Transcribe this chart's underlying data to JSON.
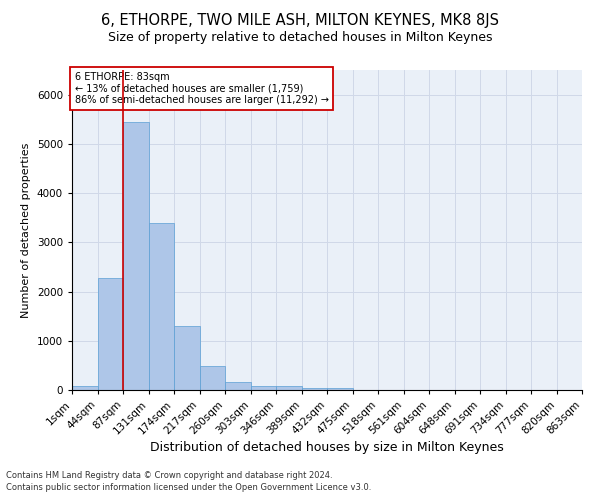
{
  "title": "6, ETHORPE, TWO MILE ASH, MILTON KEYNES, MK8 8JS",
  "subtitle": "Size of property relative to detached houses in Milton Keynes",
  "xlabel": "Distribution of detached houses by size in Milton Keynes",
  "ylabel": "Number of detached properties",
  "footnote1": "Contains HM Land Registry data © Crown copyright and database right 2024.",
  "footnote2": "Contains public sector information licensed under the Open Government Licence v3.0.",
  "annotation_title": "6 ETHORPE: 83sqm",
  "annotation_line2": "← 13% of detached houses are smaller (1,759)",
  "annotation_line3": "86% of semi-detached houses are larger (11,292) →",
  "bar_values": [
    75,
    2270,
    5440,
    3390,
    1290,
    480,
    165,
    85,
    75,
    50,
    45,
    0,
    0,
    0,
    0,
    0,
    0,
    0,
    0,
    0
  ],
  "bar_labels": [
    "1sqm",
    "44sqm",
    "87sqm",
    "131sqm",
    "174sqm",
    "217sqm",
    "260sqm",
    "303sqm",
    "346sqm",
    "389sqm",
    "432sqm",
    "475sqm",
    "518sqm",
    "561sqm",
    "604sqm",
    "648sqm",
    "691sqm",
    "734sqm",
    "777sqm",
    "820sqm",
    "863sqm"
  ],
  "bar_color": "#aec6e8",
  "bar_edge_color": "#5a9fd4",
  "grid_color": "#d0d8e8",
  "background_color": "#eaf0f8",
  "vline_color": "#cc0000",
  "annotation_box_color": "#cc0000",
  "ylim": [
    0,
    6500
  ],
  "title_fontsize": 10.5,
  "subtitle_fontsize": 9,
  "xlabel_fontsize": 9,
  "ylabel_fontsize": 8,
  "tick_fontsize": 7.5,
  "footnote_fontsize": 6
}
